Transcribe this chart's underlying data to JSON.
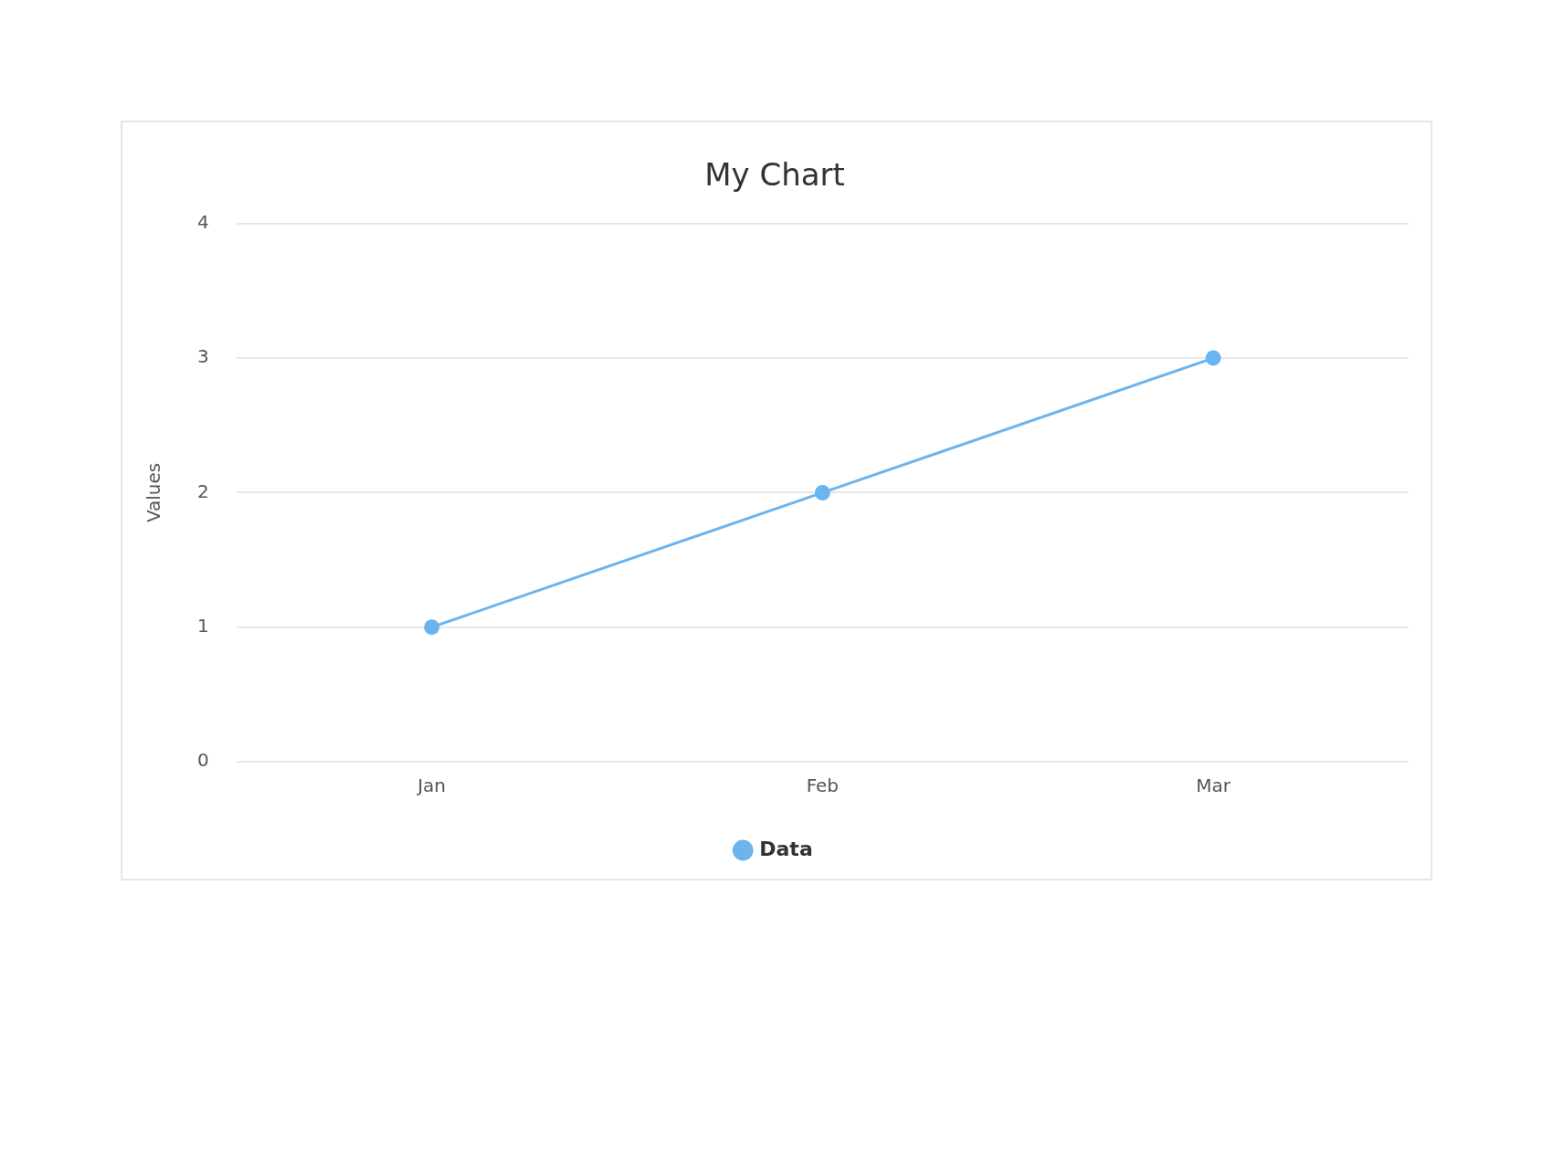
{
  "chart_data": {
    "type": "line",
    "title": "My Chart",
    "ylabel": "Values",
    "categories": [
      "Jan",
      "Feb",
      "Mar"
    ],
    "series": [
      {
        "name": "Data",
        "color": "#6cb4ee",
        "values": [
          1,
          2,
          3
        ]
      }
    ],
    "ylim": [
      0,
      4
    ],
    "yticks": [
      0,
      1,
      2,
      3,
      4
    ],
    "grid": "y",
    "legend": "bottom",
    "marker": "circle",
    "line_style": "solid"
  }
}
